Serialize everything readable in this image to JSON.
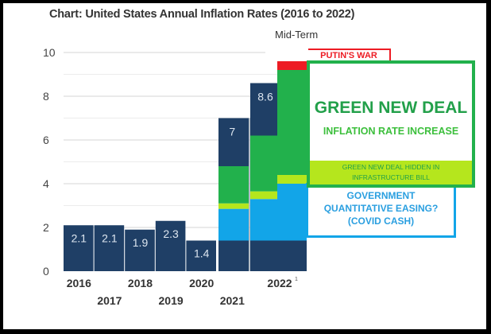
{
  "chart_data": {
    "type": "bar",
    "title": "Chart: United States Annual Inflation Rates (2016 to 2022)",
    "ylim": [
      0,
      10
    ],
    "yticks": [
      "0",
      "2",
      "4",
      "6",
      "8",
      "10"
    ],
    "grid": true,
    "categories": [
      "2016",
      "2017",
      "2018",
      "2019",
      "2020",
      "2021",
      "2022"
    ],
    "values": [
      2.1,
      2.1,
      1.9,
      2.3,
      1.4,
      7,
      8.6
    ],
    "value_labels": [
      "2.1",
      "2.1",
      "1.9",
      "2.3",
      "1.4",
      "7",
      "8.6"
    ],
    "x_superscript_2022": "1",
    "stacked_overlays": [
      {
        "category": "2021",
        "segments": [
          {
            "component": "base",
            "from": 0,
            "to": 1.4
          },
          {
            "component": "qe",
            "from": 1.4,
            "to": 2.85
          },
          {
            "component": "infrastructure",
            "from": 2.85,
            "to": 3.1
          },
          {
            "component": "gnd",
            "from": 3.1,
            "to": 4.8
          },
          {
            "component": "base",
            "from": 4.8,
            "to": 7
          }
        ]
      },
      {
        "category": "2022",
        "segments": [
          {
            "component": "base",
            "from": 0,
            "to": 1.4
          },
          {
            "component": "qe",
            "from": 1.4,
            "to": 3.3
          },
          {
            "component": "infrastructure",
            "from": 3.3,
            "to": 3.65
          },
          {
            "component": "gnd",
            "from": 3.65,
            "to": 6.2
          },
          {
            "component": "base",
            "from": 6.2,
            "to": 8.6
          }
        ]
      },
      {
        "category": "Mid-Term",
        "segments": [
          {
            "component": "base",
            "from": 0,
            "to": 1.4
          },
          {
            "component": "qe",
            "from": 1.4,
            "to": 4.0
          },
          {
            "component": "infrastructure",
            "from": 4.0,
            "to": 4.4
          },
          {
            "component": "gnd",
            "from": 4.4,
            "to": 9.2
          },
          {
            "component": "war",
            "from": 9.2,
            "to": 9.6
          }
        ]
      }
    ],
    "colors": {
      "base": "#1f3f66",
      "qe": "#12a5e8",
      "infrastructure": "#b5e61d",
      "gnd": "#22b14c",
      "war": "#ed1c24"
    }
  },
  "annotations": {
    "midterm": "Mid-Term",
    "war": "PUTIN'S WAR",
    "gnd_title": "GREEN NEW DEAL",
    "gnd_subtitle": "INFLATION RATE INCREASE",
    "infrastructure_line1": "GREEN NEW DEAL HIDDEN IN",
    "infrastructure_line2": "INFRASTRUCTURE BILL",
    "qe_line1": "GOVERNMENT",
    "qe_line2": "QUANTITATIVE EASING?",
    "qe_line3": "(COVID CASH)"
  }
}
